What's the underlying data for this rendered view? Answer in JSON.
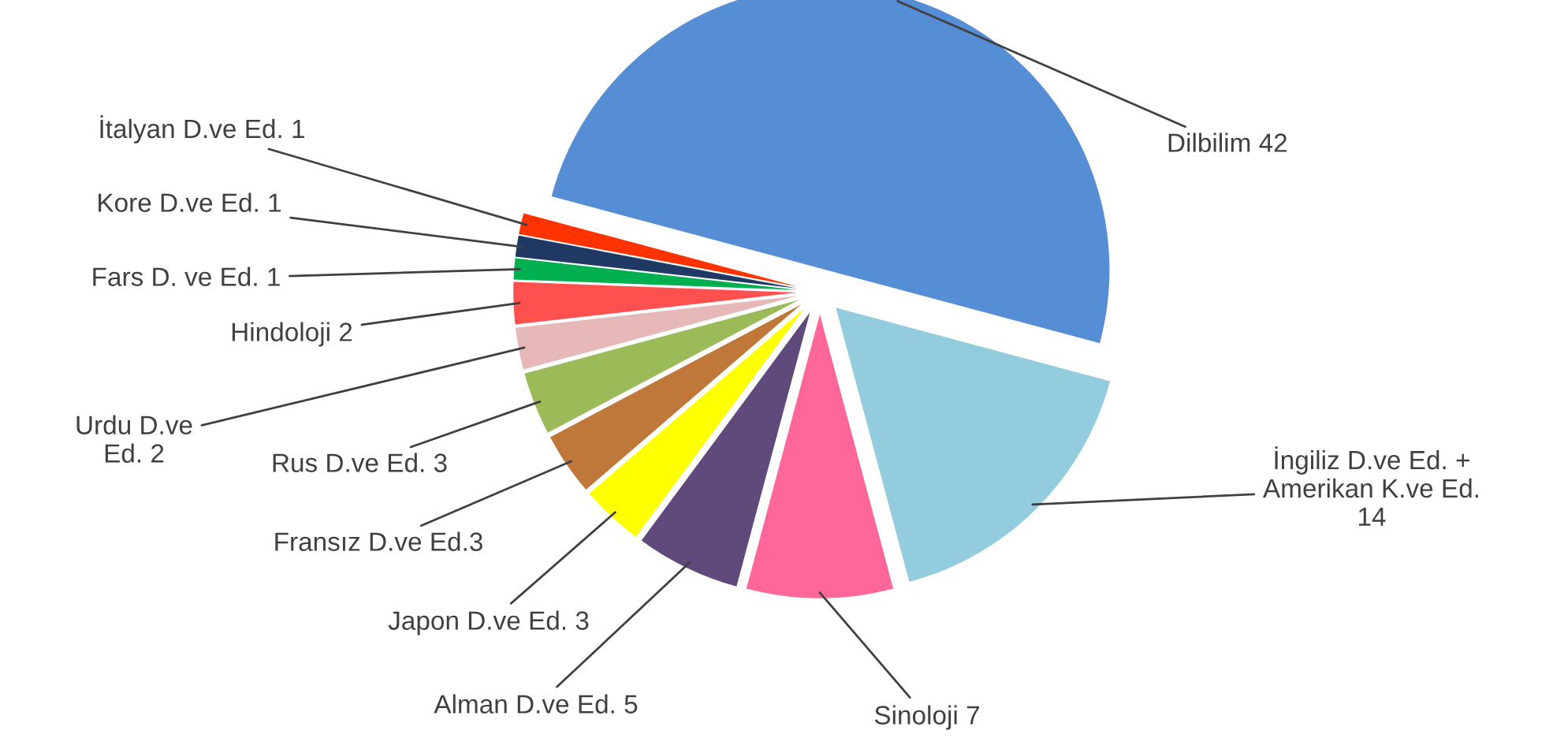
{
  "chart_data": {
    "type": "pie",
    "categories": [
      "Dilbilim 42",
      "İngiliz D.ve Ed. +\nAmerikan K.ve Ed.\n14",
      "Sinoloji 7",
      "Alman D.ve Ed. 5",
      "Japon D.ve Ed. 3",
      "Fransız D.ve Ed.3",
      "Rus D.ve Ed. 3",
      "Urdu D.ve\nEd. 2",
      "Hindoloji 2",
      "Fars D. ve Ed. 1",
      "Kore D.ve Ed. 1",
      "İtalyan D.ve Ed. 1"
    ],
    "values": [
      42,
      14,
      7,
      5,
      3,
      3,
      3,
      2,
      2,
      1,
      1,
      1
    ],
    "colors": [
      "#558ed5",
      "#93cddd",
      "#ff6699",
      "#604a7b",
      "#ffff00",
      "#c0773a",
      "#9bbb59",
      "#e6b9b8",
      "#ff5050",
      "#00b050",
      "#1f3864",
      "#ff3300"
    ],
    "legend": false
  }
}
